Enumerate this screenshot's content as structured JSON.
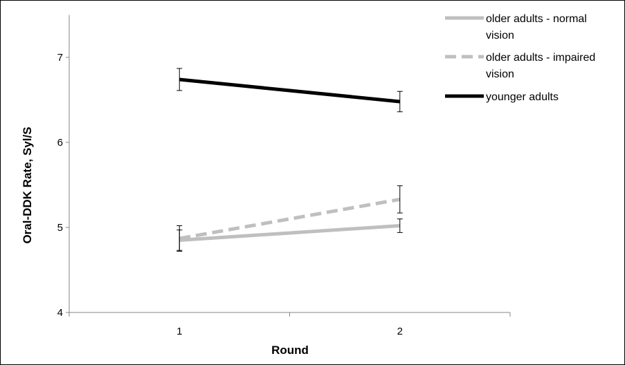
{
  "chart_data": {
    "type": "line",
    "xlabel": "Round",
    "ylabel": "Oral-DDK Rate, Syl/S",
    "x": [
      1,
      2
    ],
    "xlim": [
      0.5,
      2.5
    ],
    "ylim": [
      4,
      7.5
    ],
    "yticks": [
      4,
      5,
      6,
      7
    ],
    "xticks": [
      1,
      2
    ],
    "grid": false,
    "legend_position": "top-right",
    "series": [
      {
        "name": "older adults - normal vision",
        "name_lines": [
          "older adults - normal",
          "vision"
        ],
        "values": [
          4.85,
          5.02
        ],
        "errors": [
          0.12,
          0.08
        ],
        "color": "#BFBFBF",
        "dash": "solid"
      },
      {
        "name": "older adults - impaired vision",
        "name_lines": [
          "older adults - impaired",
          "vision"
        ],
        "values": [
          4.87,
          5.33
        ],
        "errors": [
          0.15,
          0.16
        ],
        "color": "#BFBFBF",
        "dash": "dashed"
      },
      {
        "name": "younger adults",
        "name_lines": [
          "younger adults"
        ],
        "values": [
          6.74,
          6.48
        ],
        "errors": [
          0.13,
          0.12
        ],
        "color": "#000000",
        "dash": "solid"
      }
    ]
  }
}
